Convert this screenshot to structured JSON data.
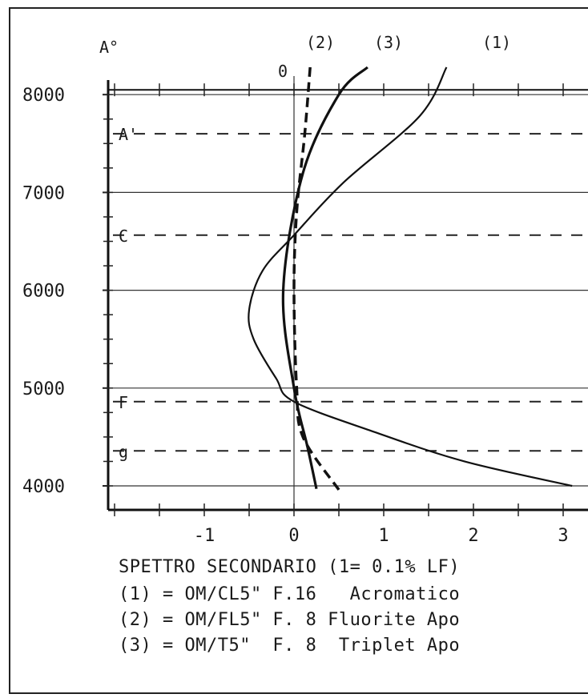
{
  "chart_data": {
    "type": "line",
    "title": "SPETTRO SECONDARIO (1= 0.1% LF)",
    "ylabel": "A°",
    "xlabel": "",
    "xlim": [
      -2,
      3.3
    ],
    "ylim": [
      3750,
      8200
    ],
    "x_ticks": [
      "-1",
      "0",
      "1",
      "2",
      "3"
    ],
    "y_ticks": [
      "4000",
      "5000",
      "6000",
      "7000",
      "8000"
    ],
    "zero_label": "0",
    "gridlines_y": [
      4000,
      5000,
      6000,
      7000,
      8000
    ],
    "reference_lines": [
      {
        "label": "A'",
        "y": 7600
      },
      {
        "label": "C",
        "y": 6563
      },
      {
        "label": "F",
        "y": 4861
      },
      {
        "label": "g",
        "y": 4358
      }
    ],
    "series": [
      {
        "name": "(1)",
        "style": "solid-thin",
        "points": [
          [
            1.7,
            8280
          ],
          [
            1.4,
            7780
          ],
          [
            0.55,
            7100
          ],
          [
            0.0,
            6563
          ],
          [
            -0.35,
            6200
          ],
          [
            -0.5,
            5800
          ],
          [
            -0.45,
            5500
          ],
          [
            -0.2,
            5100
          ],
          [
            0.0,
            4861
          ],
          [
            0.9,
            4550
          ],
          [
            1.9,
            4250
          ],
          [
            3.1,
            4000
          ]
        ]
      },
      {
        "name": "(2)",
        "style": "dashed",
        "points": [
          [
            0.18,
            8280
          ],
          [
            0.12,
            7600
          ],
          [
            0.03,
            6800
          ],
          [
            0.0,
            6000
          ],
          [
            0.03,
            5000
          ],
          [
            0.1,
            4500
          ],
          [
            0.5,
            3960
          ]
        ]
      },
      {
        "name": "(3)",
        "style": "solid",
        "points": [
          [
            0.82,
            8280
          ],
          [
            0.5,
            8000
          ],
          [
            0.1,
            7200
          ],
          [
            -0.12,
            6000
          ],
          [
            0.0,
            5000
          ],
          [
            0.15,
            4400
          ],
          [
            0.25,
            3970
          ]
        ]
      }
    ],
    "legend": [
      "(1) = OM/CL5\" F.16   Acromatico",
      "(2) = OM/FL5\" F. 8 Fluorite Apo",
      "(3) = OM/T5\"  F. 8  Triplet Apo"
    ]
  }
}
